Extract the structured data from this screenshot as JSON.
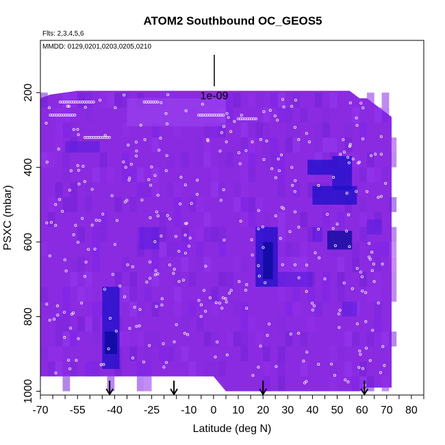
{
  "chart_data": {
    "type": "heatmap",
    "title": "ATOM2 Southbound OC_GEOS5",
    "subtitle_flights": "Flts: 2,3,4,5,6",
    "subtitle_dates": "MMDD: 0129,0201,0203,0205,0210",
    "xlabel": "Latitude (deg N)",
    "ylabel": "PSXC (mbar)",
    "xlim": [
      -70,
      85
    ],
    "ylim": [
      1010,
      60
    ],
    "y_reversed": true,
    "x_ticks": [
      -70,
      -55,
      -40,
      -25,
      -10,
      0,
      10,
      20,
      30,
      40,
      50,
      60,
      70,
      80
    ],
    "x_tick_labels": [
      "-70",
      "-55",
      "-40",
      "-25",
      "-10",
      "0",
      "10",
      "20",
      "30",
      "40",
      "50",
      "60",
      "70",
      "80"
    ],
    "y_ticks": [
      200,
      400,
      600,
      800,
      1000
    ],
    "y_tick_labels": [
      "200",
      "400",
      "600",
      "800",
      "1000"
    ],
    "scale_label": "1e-09",
    "arrows_latitude": [
      -42,
      -16,
      20,
      61
    ],
    "colors": {
      "background_fill": "#8a2be2",
      "light_patch": "#9b45f0",
      "medium_patch": "#5a1de0",
      "dark_patch": "#1c0fc8",
      "darkest_patch": "#0a0a9a",
      "sample_marker": "#ffffff"
    },
    "dark_regions": [
      {
        "lat": [
          -45,
          -38
        ],
        "p": [
          720,
          940
        ],
        "level": "dark"
      },
      {
        "lat": [
          -44,
          -39
        ],
        "p": [
          840,
          900
        ],
        "level": "darkest"
      },
      {
        "lat": [
          -30,
          -22
        ],
        "p": [
          560,
          620
        ],
        "level": "medium"
      },
      {
        "lat": [
          17,
          26
        ],
        "p": [
          560,
          720
        ],
        "level": "dark"
      },
      {
        "lat": [
          20,
          24
        ],
        "p": [
          600,
          700
        ],
        "level": "darkest"
      },
      {
        "lat": [
          38,
          48
        ],
        "p": [
          380,
          420
        ],
        "level": "dark"
      },
      {
        "lat": [
          40,
          58
        ],
        "p": [
          450,
          500
        ],
        "level": "dark"
      },
      {
        "lat": [
          48,
          56
        ],
        "p": [
          370,
          460
        ],
        "level": "dark"
      },
      {
        "lat": [
          46,
          56
        ],
        "p": [
          570,
          620
        ],
        "level": "darkest"
      },
      {
        "lat": [
          26,
          40
        ],
        "p": [
          680,
          720
        ],
        "level": "medium"
      },
      {
        "lat": [
          40,
          44
        ],
        "p": [
          560,
          600
        ],
        "level": "medium"
      },
      {
        "lat": [
          -60,
          -46
        ],
        "p": [
          330,
          360
        ],
        "level": "medium"
      },
      {
        "lat": [
          52,
          58
        ],
        "p": [
          760,
          800
        ],
        "level": "medium"
      },
      {
        "lat": [
          62,
          68
        ],
        "p": [
          540,
          580
        ],
        "level": "medium"
      }
    ]
  }
}
